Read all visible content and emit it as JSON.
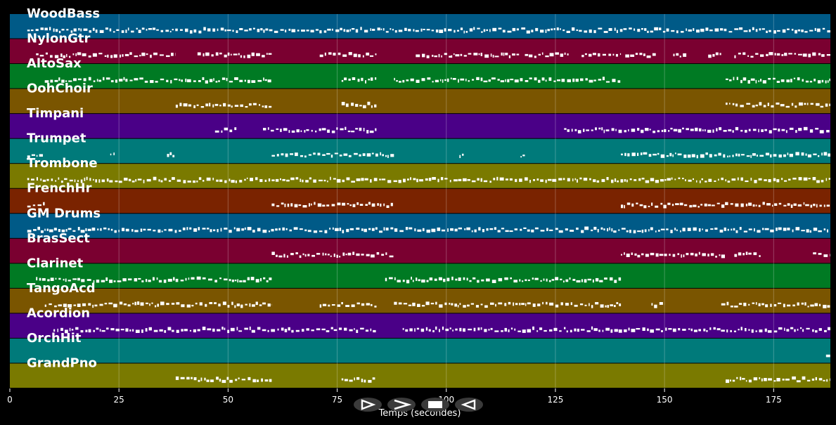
{
  "chart_data": {
    "type": "piano-roll",
    "title": "",
    "xlabel": "Temps (secondes)",
    "ylabel": "",
    "xlim": [
      0,
      188
    ],
    "x_ticks": [
      0,
      25,
      50,
      75,
      100,
      125,
      150,
      175
    ],
    "grid": true,
    "background": "#000000",
    "note_color": "#ffffff",
    "tracks": [
      {
        "name": "WoodBass",
        "color": "#005a87",
        "segments": [
          [
            4,
            85
          ],
          [
            85,
            188
          ]
        ]
      },
      {
        "name": "NylonGtr",
        "color": "#7a0030",
        "segments": [
          [
            6,
            19
          ],
          [
            19,
            38
          ],
          [
            43,
            60
          ],
          [
            71,
            84
          ],
          [
            93,
            101
          ],
          [
            101,
            117
          ],
          [
            118,
            128
          ],
          [
            131,
            140
          ],
          [
            141,
            148
          ],
          [
            152,
            155
          ],
          [
            160,
            163
          ],
          [
            166,
            188
          ]
        ]
      },
      {
        "name": "AltoSax",
        "color": "#007a23",
        "segments": [
          [
            8,
            60
          ],
          [
            76,
            84
          ],
          [
            88,
            140
          ],
          [
            164,
            188
          ]
        ]
      },
      {
        "name": "OohChoir",
        "color": "#7a5500",
        "segments": [
          [
            38,
            60
          ],
          [
            76,
            84
          ],
          [
            164,
            188
          ]
        ]
      },
      {
        "name": "Timpani",
        "color": "#4a0087",
        "segments": [
          [
            47,
            52
          ],
          [
            58,
            84
          ],
          [
            127,
            188
          ]
        ]
      },
      {
        "name": "Trumpet",
        "color": "#007a7a",
        "segments": [
          [
            4,
            8
          ],
          [
            23,
            24
          ],
          [
            36,
            38
          ],
          [
            60,
            88
          ],
          [
            103,
            104
          ],
          [
            117,
            118
          ],
          [
            140,
            188
          ]
        ]
      },
      {
        "name": "Trombone",
        "color": "#7a7a00",
        "segments": [
          [
            4,
            60
          ],
          [
            60,
            188
          ]
        ]
      },
      {
        "name": "FrenchHr",
        "color": "#7a2300",
        "segments": [
          [
            4,
            8
          ],
          [
            60,
            88
          ],
          [
            140,
            188
          ]
        ]
      },
      {
        "name": "GM Drums",
        "color": "#005a87",
        "segments": [
          [
            4,
            188
          ]
        ]
      },
      {
        "name": "BrasSect",
        "color": "#7a0030",
        "segments": [
          [
            60,
            88
          ],
          [
            140,
            164
          ],
          [
            166,
            172
          ],
          [
            184,
            188
          ]
        ]
      },
      {
        "name": "Clarinet",
        "color": "#007a23",
        "segments": [
          [
            6,
            60
          ],
          [
            86,
            140
          ]
        ]
      },
      {
        "name": "TangoAcd",
        "color": "#7a5500",
        "segments": [
          [
            8,
            60
          ],
          [
            71,
            84
          ],
          [
            88,
            140
          ],
          [
            147,
            150
          ],
          [
            163,
            188
          ]
        ]
      },
      {
        "name": "Acordion",
        "color": "#4a0087",
        "segments": [
          [
            10,
            84
          ],
          [
            90,
            188
          ]
        ]
      },
      {
        "name": "OrchHit",
        "color": "#007a7a",
        "segments": [
          [
            187,
            188
          ]
        ]
      },
      {
        "name": "GrandPno",
        "color": "#7a7a00",
        "segments": [
          [
            38,
            60
          ],
          [
            76,
            84
          ],
          [
            164,
            188
          ]
        ]
      }
    ]
  },
  "controls": {
    "play_icon": "play-icon",
    "forward_icon": "forward-icon",
    "stop_icon": "stop-icon",
    "rewind_icon": "rewind-icon"
  }
}
